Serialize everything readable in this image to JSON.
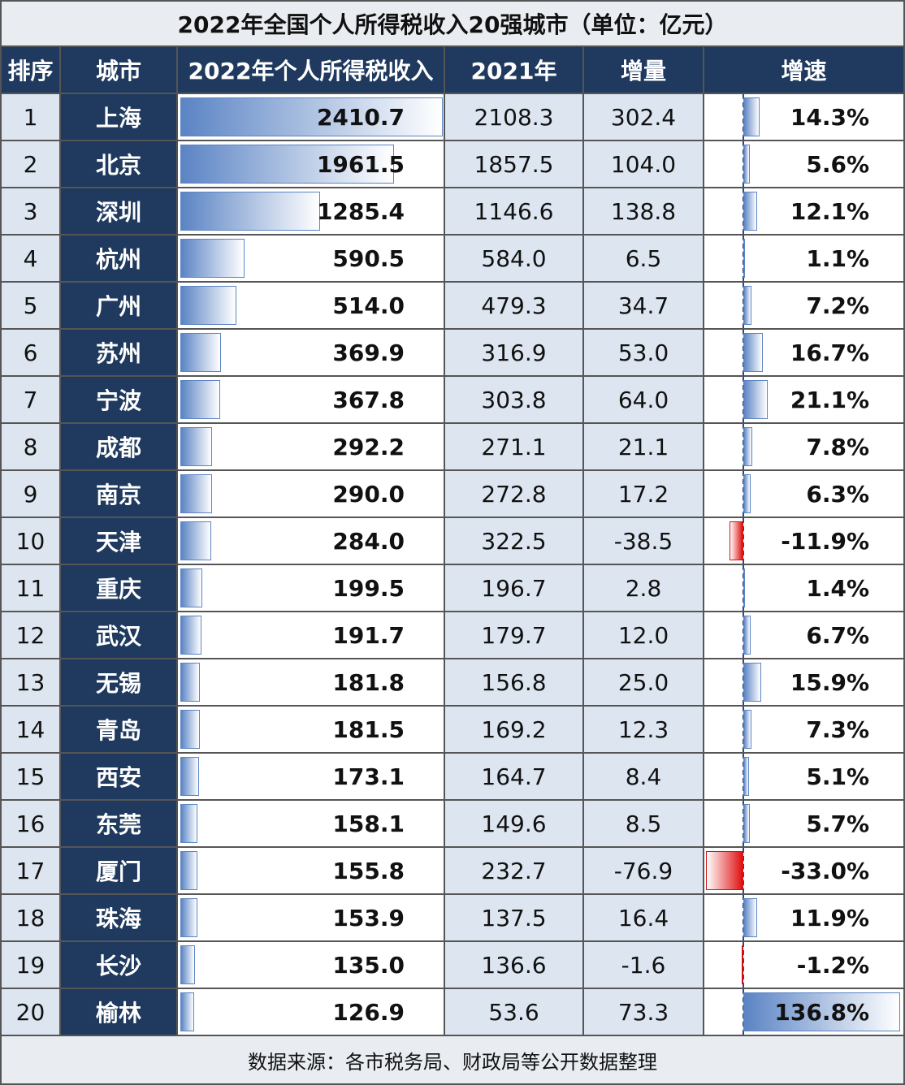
{
  "title": "2022年全国个人所得税收入20强城市（单位：亿元）",
  "table": {
    "header": [
      "排序",
      "城市",
      "2022年个人所得税收入",
      "2021年",
      "增量",
      "增速"
    ],
    "rows": [
      [
        "1",
        "上海",
        "2410.7",
        "2108.3",
        "302.4",
        "14.3%"
      ],
      [
        "2",
        "北京",
        "1961.5",
        "1857.5",
        "104.0",
        "5.6%"
      ],
      [
        "3",
        "深圳",
        "1285.4",
        "1146.6",
        "138.8",
        "12.1%"
      ],
      [
        "4",
        "杭州",
        "590.5",
        "584.0",
        "6.5",
        "1.1%"
      ],
      [
        "5",
        "广州",
        "514.0",
        "479.3",
        "34.7",
        "7.2%"
      ],
      [
        "6",
        "苏州",
        "369.9",
        "316.9",
        "53.0",
        "16.7%"
      ],
      [
        "7",
        "宁波",
        "367.8",
        "303.8",
        "64.0",
        "21.1%"
      ],
      [
        "8",
        "成都",
        "292.2",
        "271.1",
        "21.1",
        "7.8%"
      ],
      [
        "9",
        "南京",
        "290.0",
        "272.8",
        "17.2",
        "6.3%"
      ],
      [
        "10",
        "天津",
        "284.0",
        "322.5",
        "-38.5",
        "-11.9%"
      ],
      [
        "11",
        "重庆",
        "199.5",
        "196.7",
        "2.8",
        "1.4%"
      ],
      [
        "12",
        "武汉",
        "191.7",
        "179.7",
        "12.0",
        "6.7%"
      ],
      [
        "13",
        "无锡",
        "181.8",
        "156.8",
        "25.0",
        "15.9%"
      ],
      [
        "14",
        "青岛",
        "181.5",
        "169.2",
        "12.3",
        "7.3%"
      ],
      [
        "15",
        "西安",
        "173.1",
        "164.7",
        "8.4",
        "5.1%"
      ],
      [
        "16",
        "东莞",
        "158.1",
        "149.6",
        "8.5",
        "5.7%"
      ],
      [
        "17",
        "厦门",
        "155.8",
        "232.7",
        "-76.9",
        "-33.0%"
      ],
      [
        "18",
        "珠海",
        "153.9",
        "137.5",
        "16.4",
        "11.9%"
      ],
      [
        "19",
        "长沙",
        "135.0",
        "136.6",
        "-1.6",
        "-1.2%"
      ],
      [
        "20",
        "榆林",
        "126.9",
        "53.6",
        "73.3",
        "136.8%"
      ]
    ]
  },
  "footer": "数据来源：各市税务局、财政局等公开数据整理"
}
